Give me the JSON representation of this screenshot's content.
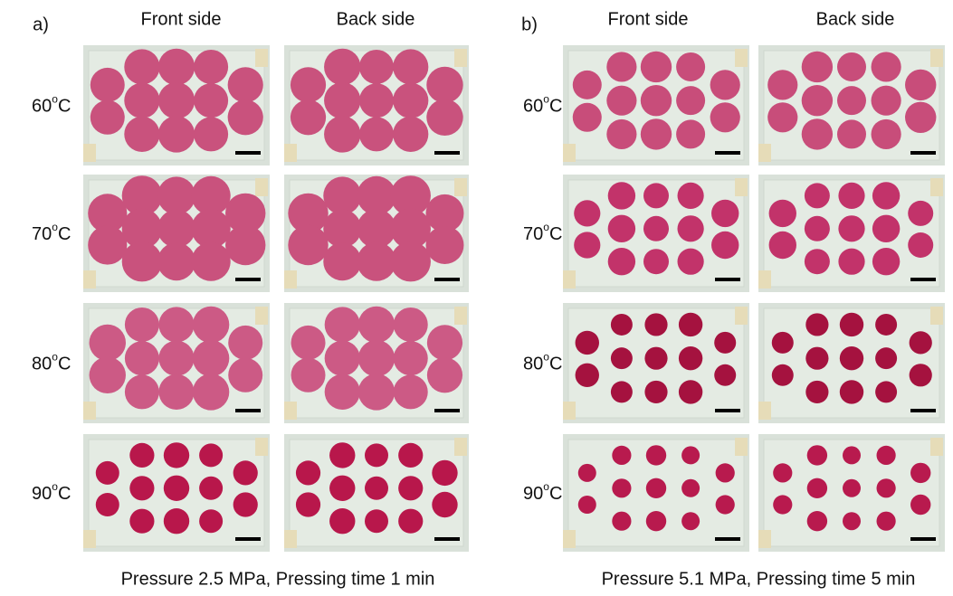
{
  "panels": [
    {
      "label": "a)",
      "columns": [
        "Front side",
        "Back side"
      ],
      "rows": [
        {
          "temp": "60",
          "sup": "o",
          "unit": "C"
        },
        {
          "temp": "70",
          "sup": "o",
          "unit": "C"
        },
        {
          "temp": "80",
          "sup": "o",
          "unit": "C"
        },
        {
          "temp": "90",
          "sup": "o",
          "unit": "C"
        }
      ],
      "caption": "Pressure 2.5 MPa, Pressing time 1 min"
    },
    {
      "label": "b)",
      "columns": [
        "Front side",
        "Back side"
      ],
      "rows": [
        {
          "temp": "60",
          "sup": "o",
          "unit": "C"
        },
        {
          "temp": "70",
          "sup": "o",
          "unit": "C"
        },
        {
          "temp": "80",
          "sup": "o",
          "unit": "C"
        },
        {
          "temp": "90",
          "sup": "o",
          "unit": "C"
        }
      ],
      "caption": "Pressure 5.1 MPa, Pressing time 5 min"
    }
  ]
}
